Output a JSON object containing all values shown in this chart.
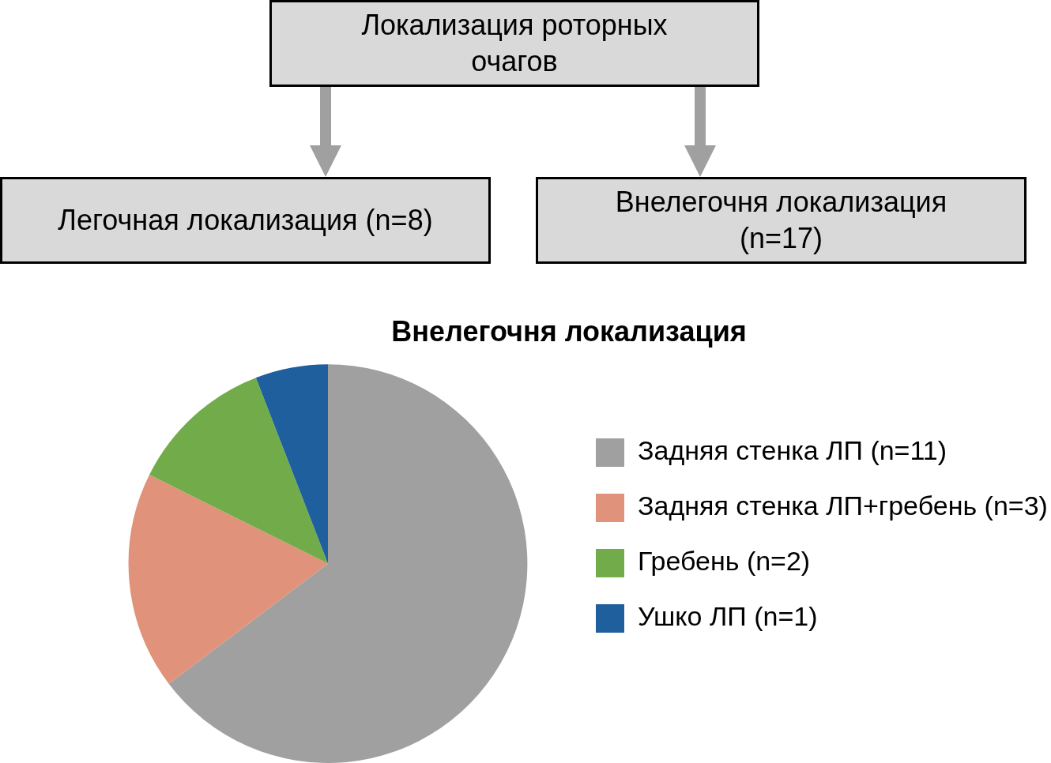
{
  "chart_data": {
    "type": "pie",
    "title": "Внелегочня локализация",
    "categories": [
      "Задняя стенка ЛП (n=11)",
      "Задняя стенка ЛП+гребень (n=3)",
      "Гребень (n=2)",
      "Ушко ЛП (n=1)"
    ],
    "values": [
      11,
      3,
      2,
      1
    ],
    "colors": [
      "#a0a0a0",
      "#e0937a",
      "#72ac4a",
      "#1f5f9e"
    ],
    "legend": "right",
    "annotations": [
      "Локализация роторных очагов",
      "Легочная локализация (n=8)",
      "Внелегочня локализация (n=17)"
    ]
  }
}
